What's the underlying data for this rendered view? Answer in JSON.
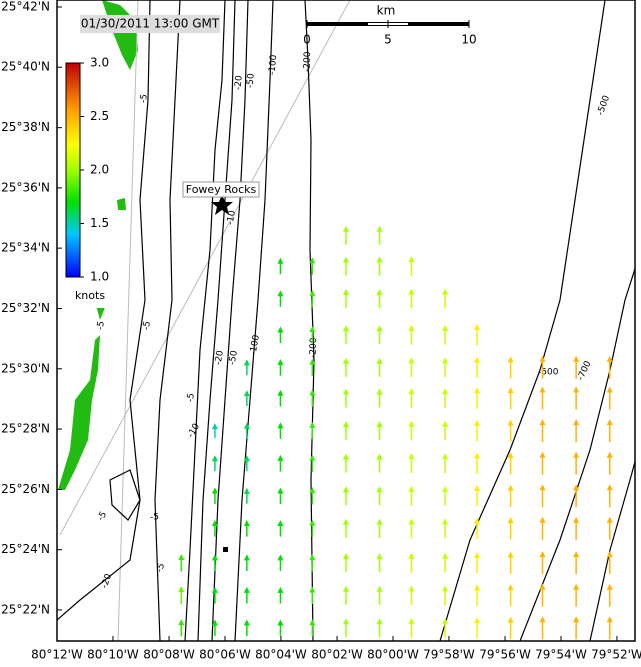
{
  "map": {
    "timestamp": "01/30/2011 13:00 GMT",
    "station": "Fowey Rocks",
    "colorbar": {
      "label": "knots",
      "lim": [
        1,
        3
      ],
      "ticks": [
        {
          "value": 3,
          "label": "3.0"
        },
        2.5,
        {
          "value": 2,
          "label": "2.0"
        },
        1.5,
        {
          "value": 1,
          "label": "1.0"
        }
      ]
    },
    "scalebar": {
      "label": "km",
      "lim": [
        0,
        10
      ],
      "ticks": [
        0,
        5,
        10
      ]
    },
    "lat_ticks": [
      {
        "value": 25.7,
        "label": "25°42'N"
      },
      {
        "value": 25.6667,
        "label": "25°40'N"
      },
      {
        "value": 25.6333,
        "label": "25°38'N"
      },
      {
        "value": 25.6,
        "label": "25°36'N"
      },
      {
        "value": 25.5667,
        "label": "25°34'N"
      },
      {
        "value": 25.5333,
        "label": "25°32'N"
      },
      {
        "value": 25.5,
        "label": "25°30'N"
      },
      {
        "value": 25.4667,
        "label": "25°28'N"
      },
      {
        "value": 25.4333,
        "label": "25°26'N"
      },
      {
        "value": 25.4,
        "label": "25°24'N"
      },
      {
        "value": 25.3667,
        "label": "25°22'N"
      }
    ],
    "lon_ticks": [
      {
        "value": -80.2,
        "label": "80°12'W"
      },
      {
        "value": -80.1667,
        "label": "80°10'W"
      },
      {
        "value": -80.1333,
        "label": "80°08'W"
      },
      {
        "value": -80.1,
        "label": "80°06'W"
      },
      {
        "value": -80.0667,
        "label": "80°04'W"
      },
      {
        "value": -80.0333,
        "label": "80°02'W"
      },
      {
        "value": -80,
        "label": "80°00'W"
      },
      {
        "value": -79.9667,
        "label": "79°58'W"
      },
      {
        "value": -79.9333,
        "label": "79°56'W"
      },
      {
        "value": -79.9,
        "label": "79°54'W"
      },
      {
        "value": -79.8667,
        "label": "79°52'W"
      }
    ],
    "contour_labels": [
      "-5",
      "-5",
      "-5",
      "-5",
      "-10",
      "-20",
      "-50",
      "-100",
      "-200",
      "-20",
      "-50",
      "-100",
      "-200",
      "-500",
      "-500",
      "-700",
      "-5",
      "-10",
      "-5",
      "-5",
      "-20"
    ],
    "currents": {
      "lon": [
        -80.126,
        -80.106,
        -80.087,
        -80.067,
        -80.048,
        -80.028,
        -80.008,
        -79.989,
        -79.969,
        -79.95,
        -79.93,
        -79.911,
        -79.891,
        -79.871
      ],
      "lat": [
        25.573,
        25.556,
        25.538,
        25.518,
        25.5,
        25.483,
        25.465,
        25.447,
        25.429,
        25.411,
        25.392,
        25.374,
        25.356
      ],
      "speeds": [
        [
          null,
          null,
          null,
          null,
          null,
          2.0,
          2.0,
          null,
          null,
          null,
          null,
          null,
          null,
          null
        ],
        [
          null,
          null,
          null,
          1.7,
          1.8,
          2.0,
          2.0,
          2.1,
          null,
          null,
          null,
          null,
          null,
          null
        ],
        [
          null,
          null,
          null,
          1.7,
          1.8,
          2.0,
          2.0,
          2.1,
          2.1,
          null,
          null,
          null,
          null,
          null
        ],
        [
          null,
          null,
          null,
          1.7,
          1.8,
          2.0,
          2.0,
          2.1,
          2.1,
          2.3,
          null,
          null,
          null,
          null
        ],
        [
          null,
          null,
          1.6,
          1.7,
          1.8,
          2.0,
          2.0,
          2.1,
          2.1,
          2.3,
          2.4,
          2.5,
          2.5,
          2.5
        ],
        [
          null,
          null,
          1.6,
          1.7,
          1.8,
          2.0,
          2.0,
          2.1,
          2.1,
          2.3,
          2.4,
          2.5,
          2.5,
          2.5
        ],
        [
          null,
          1.5,
          1.6,
          1.7,
          1.8,
          2.0,
          2.0,
          2.1,
          2.1,
          2.3,
          2.4,
          2.5,
          2.5,
          2.5
        ],
        [
          null,
          1.6,
          1.6,
          1.7,
          1.8,
          2.0,
          2.0,
          2.1,
          2.1,
          2.3,
          2.4,
          2.5,
          2.5,
          2.5
        ],
        [
          null,
          1.7,
          1.6,
          1.7,
          1.8,
          2.0,
          2.0,
          2.1,
          2.1,
          2.3,
          2.4,
          2.5,
          2.5,
          2.5
        ],
        [
          null,
          1.7,
          1.7,
          1.7,
          1.8,
          2.0,
          2.0,
          2.1,
          2.1,
          2.3,
          2.4,
          2.5,
          2.5,
          2.5
        ],
        [
          1.8,
          1.7,
          1.7,
          1.7,
          1.8,
          2.0,
          2.0,
          2.1,
          2.1,
          2.3,
          2.4,
          2.5,
          2.5,
          2.5
        ],
        [
          1.9,
          1.7,
          1.7,
          1.7,
          1.8,
          2.0,
          2.0,
          2.1,
          2.1,
          2.3,
          2.4,
          2.5,
          2.5,
          2.5
        ],
        [
          1.8,
          1.7,
          1.7,
          1.7,
          1.8,
          2.0,
          2.0,
          2.1,
          2.1,
          2.3,
          2.4,
          2.5,
          2.5,
          2.5
        ]
      ]
    }
  }
}
